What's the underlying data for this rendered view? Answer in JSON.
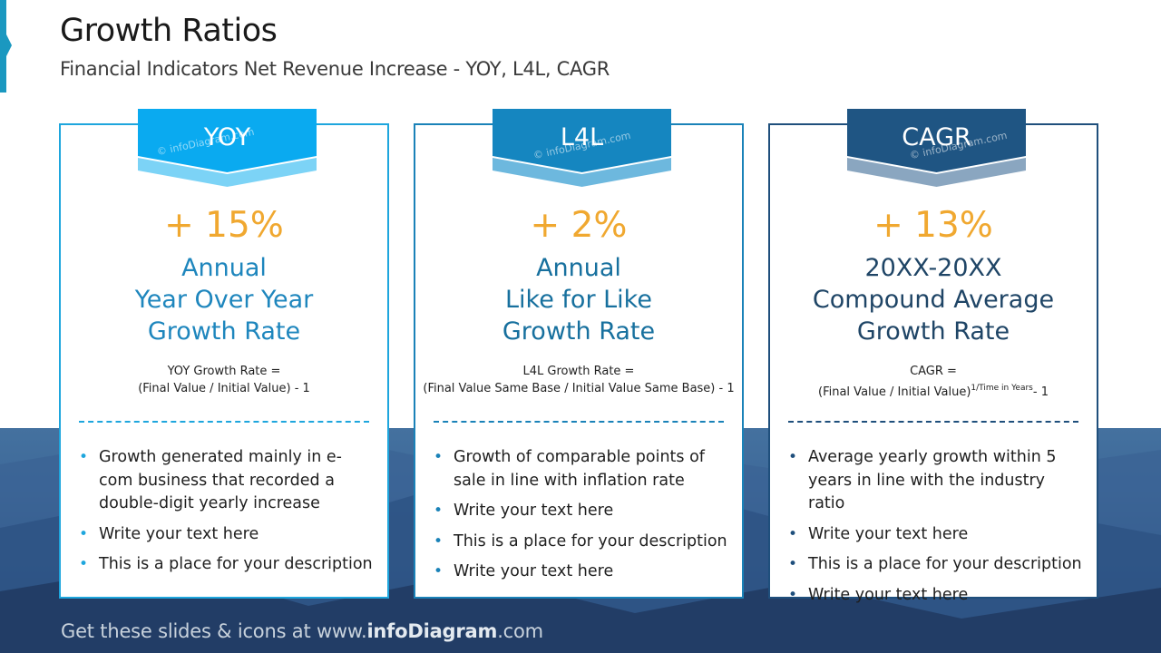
{
  "header": {
    "title": "Growth Ratios",
    "subtitle": "Financial Indicators Net Revenue Increase - YOY, L4L, CAGR"
  },
  "colors": {
    "yoy": "#0aaaf0",
    "l4l": "#1586c0",
    "cagr": "#1f5583",
    "percent": "#f0a830"
  },
  "watermark": "© infoDiagram.com",
  "cards": [
    {
      "tab": "YOY",
      "percent": "+ 15%",
      "metric": [
        "Annual",
        "Year Over Year",
        "Growth Rate"
      ],
      "formula_line1": "YOY Growth  Rate =",
      "formula_line2": "(Final Value / Initial Value) - 1",
      "bullets": [
        "Growth generated mainly in e-com business that recorded a double-digit yearly increase",
        "Write your text here",
        "This is a place for your description"
      ]
    },
    {
      "tab": "L4L",
      "percent": "+ 2%",
      "metric": [
        "Annual",
        "Like for Like",
        "Growth Rate"
      ],
      "formula_line1": "L4L Growth  Rate =",
      "formula_line2": "(Final Value Same Base / Initial Value Same Base) - 1",
      "bullets": [
        "Growth of comparable points of sale in line with inflation rate",
        "Write your text here",
        "This is a place for your description",
        "Write your text here"
      ]
    },
    {
      "tab": "CAGR",
      "percent": "+ 13%",
      "metric": [
        "20XX-20XX",
        "Compound Average",
        "Growth Rate"
      ],
      "formula_line1": "CAGR =",
      "formula_line2": "(Final Value / Initial Value)",
      "formula_sup": "1/Time in Years",
      "formula_tail": "- 1",
      "bullets": [
        "Average yearly growth within 5 years in line with the industry ratio",
        "Write your text here",
        "This is a place for your description",
        "Write your text here"
      ]
    }
  ],
  "footer": {
    "prefix": "Get these slides & icons at www.",
    "brand": "infoDiagram",
    "suffix": ".com"
  }
}
